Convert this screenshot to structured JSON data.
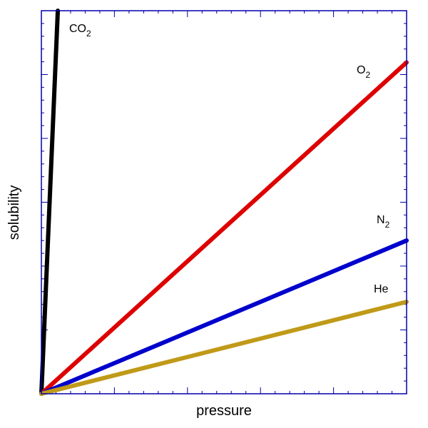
{
  "chart_data": {
    "type": "line",
    "xlabel": "pressure",
    "ylabel": "solubility",
    "xlim": [
      0,
      100
    ],
    "ylim": [
      0,
      100
    ],
    "grid": false,
    "axis_color": "#0000aa",
    "series": [
      {
        "name": "CO",
        "subscript": "2",
        "color": "#000000",
        "x": [
          0,
          4.5
        ],
        "y": [
          0,
          100
        ]
      },
      {
        "name": "O",
        "subscript": "2",
        "color": "#dd0000",
        "x": [
          0,
          100
        ],
        "y": [
          0,
          86.5
        ]
      },
      {
        "name": "N",
        "subscript": "2",
        "color": "#0000cc",
        "x": [
          0,
          100
        ],
        "y": [
          0,
          40
        ]
      },
      {
        "name": "He",
        "subscript": "",
        "color": "#c09a18",
        "x": [
          0,
          100
        ],
        "y": [
          0,
          24
        ]
      }
    ]
  }
}
